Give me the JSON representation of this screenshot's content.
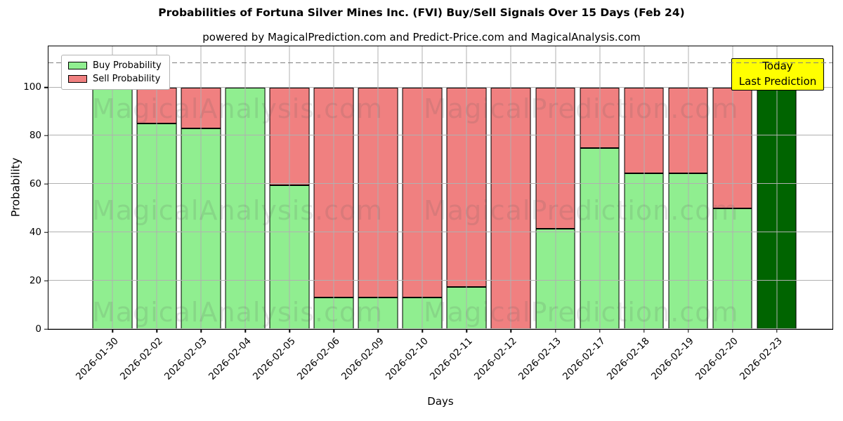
{
  "chart_data": {
    "type": "bar",
    "stacked": true,
    "title": "Probabilities of Fortuna Silver Mines Inc. (FVI) Buy/Sell Signals Over 15 Days (Feb 24)",
    "subtitle": "powered by MagicalPrediction.com and Predict-Price.com and MagicalAnalysis.com",
    "xlabel": "Days",
    "ylabel": "Probability",
    "categories": [
      "2026-01-30",
      "2026-02-02",
      "2026-02-03",
      "2026-02-04",
      "2026-02-05",
      "2026-02-06",
      "2026-02-09",
      "2026-02-10",
      "2026-02-11",
      "2026-02-12",
      "2026-02-13",
      "2026-02-17",
      "2026-02-18",
      "2026-02-19",
      "2026-02-20",
      "2026-02-23"
    ],
    "series": [
      {
        "name": "Buy Probability",
        "color": "#90EE90",
        "values": [
          100,
          85,
          83,
          100,
          59.5,
          13,
          13,
          13,
          17.5,
          0,
          41.5,
          75,
          64.5,
          64.5,
          50,
          100
        ]
      },
      {
        "name": "Sell Probability",
        "color": "#F08080",
        "values": [
          0,
          15,
          17,
          0,
          40.5,
          87,
          87,
          87,
          82.5,
          100,
          58.5,
          25,
          35.5,
          35.5,
          50,
          0
        ]
      }
    ],
    "today": {
      "index": 15,
      "bar_color": "#006400",
      "box_color": "#ffff00",
      "line1": "Today",
      "line2": "Last Prediction"
    },
    "yticks": [
      0,
      20,
      40,
      60,
      80,
      100
    ],
    "ylim": [
      0,
      117
    ],
    "dashed_guide_y": 110,
    "grid": true,
    "legend_position": "upper left",
    "watermark_left": "MagicalAnalysis.com",
    "watermark_right": "MagicalPrediction.com"
  }
}
